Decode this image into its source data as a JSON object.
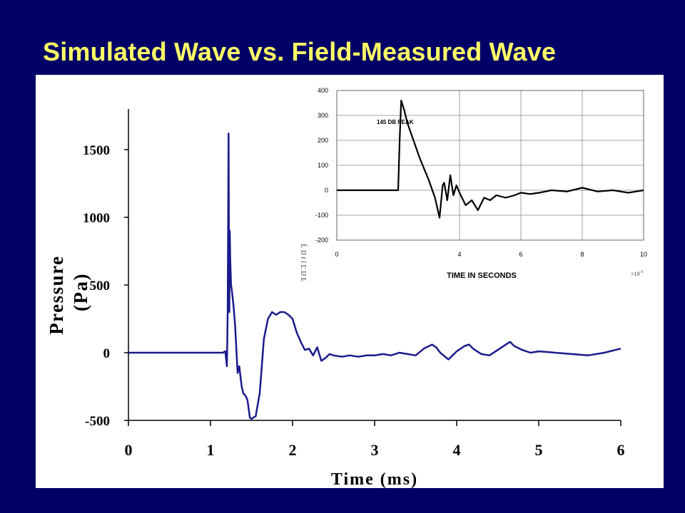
{
  "slide": {
    "title": "Simulated Wave vs. Field-Measured Wave",
    "colors": {
      "background": "#000066",
      "title": "#FFFF66",
      "panel": "#FFFFFF",
      "main_series": "#1A1A8C",
      "inset_series": "#000000",
      "inset_grid": "#888888"
    }
  },
  "chart_data": [
    {
      "type": "line",
      "xlabel": "Time (ms)",
      "ylabel": "Pressure (Pa)",
      "xlim": [
        0,
        6
      ],
      "ylim": [
        -500,
        1800
      ],
      "xticks": [
        "0",
        "1",
        "2",
        "3",
        "4",
        "5",
        "6"
      ],
      "yticks": [
        "-500",
        "0",
        "500",
        "1000",
        "1500"
      ],
      "grid": false,
      "series": [
        {
          "x": [
            0,
            0.5,
            1.0,
            1.15,
            1.18,
            1.2,
            1.21,
            1.215,
            1.22,
            1.225,
            1.23,
            1.235,
            1.24,
            1.25,
            1.26,
            1.28,
            1.3,
            1.33,
            1.35,
            1.38,
            1.4,
            1.43,
            1.45,
            1.48,
            1.5,
            1.52,
            1.55,
            1.6,
            1.65,
            1.7,
            1.72,
            1.75,
            1.8,
            1.85,
            1.9,
            1.95,
            2.0,
            2.05,
            2.1,
            2.15,
            2.2,
            2.25,
            2.3,
            2.35,
            2.4,
            2.45,
            2.5,
            2.6,
            2.7,
            2.8,
            2.9,
            3.0,
            3.1,
            3.2,
            3.3,
            3.4,
            3.5,
            3.6,
            3.7,
            3.75,
            3.8,
            3.9,
            4.0,
            4.1,
            4.15,
            4.2,
            4.3,
            4.4,
            4.5,
            4.6,
            4.65,
            4.7,
            4.8,
            4.9,
            5.0,
            5.2,
            5.4,
            5.6,
            5.8,
            6.0
          ],
          "values": [
            0,
            0,
            0,
            0,
            10,
            -100,
            300,
            900,
            1620,
            700,
            300,
            900,
            700,
            500,
            460,
            350,
            200,
            -150,
            -100,
            -250,
            -300,
            -320,
            -350,
            -480,
            -490,
            -480,
            -470,
            -300,
            100,
            250,
            270,
            300,
            280,
            300,
            300,
            280,
            250,
            150,
            80,
            20,
            30,
            -20,
            40,
            -60,
            -40,
            -10,
            -20,
            -30,
            -20,
            -30,
            -20,
            -20,
            -10,
            -20,
            0,
            -10,
            -20,
            30,
            60,
            40,
            0,
            -50,
            10,
            50,
            60,
            30,
            -10,
            -20,
            20,
            60,
            80,
            50,
            20,
            0,
            10,
            0,
            -10,
            -20,
            0,
            30
          ]
        }
      ]
    },
    {
      "type": "line",
      "title": "145 DB PEAK",
      "xlabel": "TIME IN SECONDS",
      "x_multiplier": "×10^-3",
      "xlim": [
        0,
        10
      ],
      "ylim": [
        -200,
        400
      ],
      "xticks": [
        "0",
        "4",
        "6",
        "8",
        "10"
      ],
      "yticks": [
        "-200",
        "-100",
        "0",
        "100",
        "200",
        "300",
        "400"
      ],
      "grid": true,
      "series": [
        {
          "x": [
            0,
            2.0,
            2.05,
            2.1,
            2.2,
            2.3,
            2.5,
            2.7,
            3.0,
            3.2,
            3.35,
            3.45,
            3.5,
            3.6,
            3.7,
            3.8,
            3.9,
            4.0,
            4.2,
            4.4,
            4.6,
            4.8,
            5.0,
            5.2,
            5.5,
            5.8,
            6.0,
            6.3,
            6.6,
            7.0,
            7.5,
            8.0,
            8.5,
            9.0,
            9.5,
            10.0
          ],
          "values": [
            0,
            0,
            200,
            360,
            320,
            270,
            200,
            130,
            40,
            -30,
            -110,
            20,
            30,
            -40,
            60,
            -20,
            20,
            -10,
            -60,
            -40,
            -80,
            -30,
            -40,
            -20,
            -30,
            -20,
            -10,
            -15,
            -10,
            0,
            -5,
            10,
            -5,
            0,
            -10,
            0
          ]
        }
      ]
    }
  ],
  "inset_extra": {
    "fragment_label": "Ĺ Ĳ ŕ ĩ Ľ Ĳ Ŀ"
  }
}
